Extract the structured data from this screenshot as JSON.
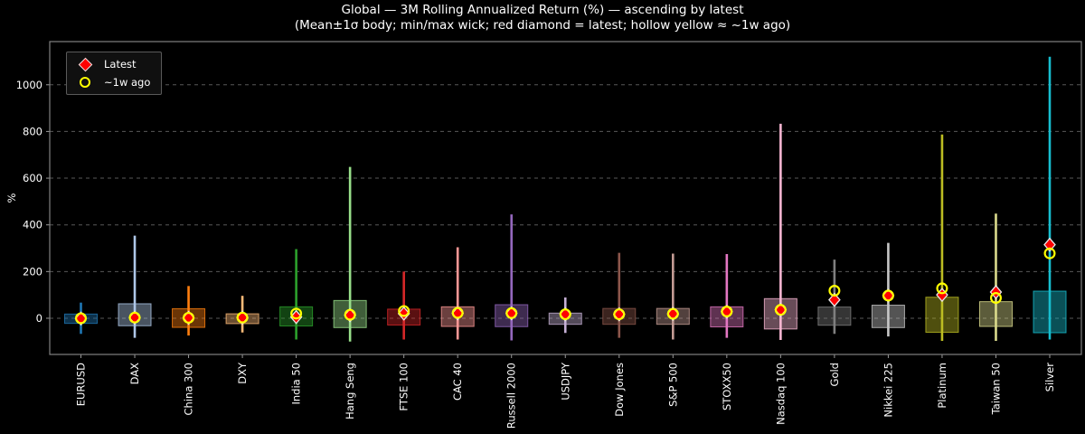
{
  "title": "Global — 3M Rolling Annualized Return (%) — ascending by latest",
  "subtitle": "(Mean±1σ body; min/max wick; red diamond = latest; hollow yellow ≈ ~1w ago)",
  "legend": {
    "latest_label": "Latest",
    "week_label": "~1w ago"
  },
  "colors": {
    "background": "#000000",
    "text": "#ffffff",
    "grid": "#585858",
    "spine": "#808080",
    "tick": "#9a9a9a",
    "latest_marker": "#ff0000",
    "latest_marker_edge": "#e8e8e8",
    "week_marker": "#ffff00",
    "legend_bg": "#101010",
    "legend_border": "#5a5a5a"
  },
  "chart_data": {
    "type": "boxplot",
    "title": "Global — 3M Rolling Annualized Return (%) — ascending by latest",
    "subtitle": "(Mean±1σ body; min/max wick; red diamond = latest; hollow yellow ≈ ~1w ago)",
    "ylabel": "%",
    "ylim": [
      -155,
      1185
    ],
    "yticks": [
      0,
      200,
      400,
      600,
      800,
      1000
    ],
    "grid": "dashed-horizontal",
    "legend_position": "upper-left",
    "body_rule": "mean ± 1 sigma",
    "wick_rule": "min to max",
    "points": [
      {
        "label": "EURUSD",
        "color": "#1f77b4",
        "mean": -2,
        "sigma": 20,
        "min": -67,
        "max": 67,
        "latest": -1,
        "week_ago": 0
      },
      {
        "label": "DAX",
        "color": "#aec7e8",
        "mean": 15,
        "sigma": 47,
        "min": -84,
        "max": 354,
        "latest": 3,
        "week_ago": 3
      },
      {
        "label": "China 300",
        "color": "#ff7f0e",
        "mean": 1,
        "sigma": 40,
        "min": -74,
        "max": 138,
        "latest": 2,
        "week_ago": 2
      },
      {
        "label": "DXY",
        "color": "#ffbb78",
        "mean": -2,
        "sigma": 21,
        "min": -61,
        "max": 96,
        "latest": 3,
        "week_ago": 3
      },
      {
        "label": "India 50",
        "color": "#2ca02c",
        "mean": 8,
        "sigma": 41,
        "min": -91,
        "max": 296,
        "latest": 5,
        "week_ago": 20
      },
      {
        "label": "Hang Seng",
        "color": "#98df8a",
        "mean": 18,
        "sigma": 58,
        "min": -100,
        "max": 648,
        "latest": 13,
        "week_ago": 15
      },
      {
        "label": "FTSE 100",
        "color": "#d62728",
        "mean": 5,
        "sigma": 34,
        "min": -91,
        "max": 200,
        "latest": 20,
        "week_ago": 31
      },
      {
        "label": "CAC 40",
        "color": "#ff9896",
        "mean": 7,
        "sigma": 42,
        "min": -91,
        "max": 304,
        "latest": 21,
        "week_ago": 23
      },
      {
        "label": "Russell 2000",
        "color": "#9467bd",
        "mean": 11,
        "sigma": 47,
        "min": -95,
        "max": 445,
        "latest": 21,
        "week_ago": 22
      },
      {
        "label": "USDJPY",
        "color": "#c5b0d5",
        "mean": -2,
        "sigma": 24,
        "min": -63,
        "max": 89,
        "latest": 17,
        "week_ago": 17
      },
      {
        "label": "Dow Jones",
        "color": "#8c564b",
        "mean": 8,
        "sigma": 34,
        "min": -84,
        "max": 280,
        "latest": 17,
        "week_ago": 17
      },
      {
        "label": "S&P 500",
        "color": "#c49c94",
        "mean": 8,
        "sigma": 34,
        "min": -91,
        "max": 277,
        "latest": 19,
        "week_ago": 19
      },
      {
        "label": "STOXX50",
        "color": "#e377c2",
        "mean": 6,
        "sigma": 43,
        "min": -84,
        "max": 275,
        "latest": 28,
        "week_ago": 29
      },
      {
        "label": "Nasdaq 100",
        "color": "#f7b6d2",
        "mean": 19,
        "sigma": 65,
        "min": -93,
        "max": 833,
        "latest": 36,
        "week_ago": 36
      },
      {
        "label": "Gold",
        "color": "#7f7f7f",
        "mean": 9,
        "sigma": 39,
        "min": -67,
        "max": 251,
        "latest": 79,
        "week_ago": 118
      },
      {
        "label": "Nikkei 225",
        "color": "#c7c7c7",
        "mean": 8,
        "sigma": 48,
        "min": -78,
        "max": 323,
        "latest": 97,
        "week_ago": 97
      },
      {
        "label": "Platinum",
        "color": "#bcbd22",
        "mean": 15,
        "sigma": 75,
        "min": -97,
        "max": 787,
        "latest": 100,
        "week_ago": 128
      },
      {
        "label": "Taiwan 50",
        "color": "#dbdb8d",
        "mean": 18,
        "sigma": 53,
        "min": -97,
        "max": 448,
        "latest": 112,
        "week_ago": 87
      },
      {
        "label": "Silver",
        "color": "#17becf",
        "mean": 27,
        "sigma": 89,
        "min": -91,
        "max": 1120,
        "latest": 315,
        "week_ago": 278
      }
    ]
  }
}
